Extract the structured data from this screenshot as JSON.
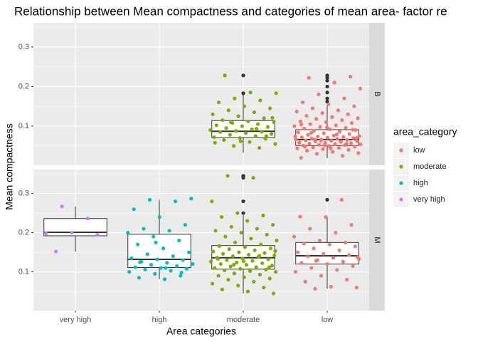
{
  "chart_data": {
    "type": "boxplot",
    "title": "Relationship between Mean compactness and categories of mean area- factor re",
    "x_label": "Area categories",
    "y_label": "Mean compactness",
    "categories": [
      "very high",
      "high",
      "moderate",
      "low"
    ],
    "ylim": [
      0.001,
      0.361
    ],
    "yticks": [
      0.1,
      0.2,
      0.3
    ],
    "yminor": [
      0.05,
      0.15,
      0.25,
      0.35
    ],
    "grid": true,
    "legend": {
      "title": "area_category",
      "position": "right",
      "entries": [
        {
          "name": "low",
          "color": "#F8766D"
        },
        {
          "name": "moderate",
          "color": "#7CAE00"
        },
        {
          "name": "high",
          "color": "#00BFC4"
        },
        {
          "name": "very high",
          "color": "#C77CFF"
        }
      ]
    },
    "outlier_color": "#333333",
    "facets": [
      {
        "label": "B",
        "groups": [
          null,
          null,
          {
            "whisker_low": 0.033,
            "q1": 0.071,
            "median": 0.087,
            "q3": 0.114,
            "whisker_high": 0.186,
            "outliers": [
              0.228,
              0.183
            ],
            "points": [
              0.045,
              0.05,
              0.055,
              0.06,
              0.065,
              0.068,
              0.07,
              0.072,
              0.075,
              0.078,
              0.08,
              0.082,
              0.085,
              0.086,
              0.088,
              0.09,
              0.092,
              0.095,
              0.098,
              0.1,
              0.102,
              0.105,
              0.108,
              0.11,
              0.112,
              0.115,
              0.12,
              0.125,
              0.13,
              0.135,
              0.14,
              0.145,
              0.15,
              0.16,
              0.165,
              0.17,
              0.183,
              0.185,
              0.228,
              0.075,
              0.062,
              0.058,
              0.093,
              0.11,
              0.121
            ]
          },
          {
            "whisker_low": 0.019,
            "q1": 0.051,
            "median": 0.066,
            "q3": 0.091,
            "whisker_high": 0.156,
            "outliers": [
              0.162,
              0.17,
              0.185,
              0.2,
              0.215,
              0.222,
              0.228
            ],
            "points": [
              0.02,
              0.025,
              0.03,
              0.032,
              0.035,
              0.038,
              0.04,
              0.042,
              0.044,
              0.045,
              0.046,
              0.048,
              0.05,
              0.051,
              0.052,
              0.053,
              0.054,
              0.055,
              0.056,
              0.057,
              0.058,
              0.059,
              0.06,
              0.061,
              0.062,
              0.063,
              0.064,
              0.065,
              0.066,
              0.067,
              0.068,
              0.069,
              0.07,
              0.071,
              0.072,
              0.073,
              0.074,
              0.075,
              0.076,
              0.078,
              0.08,
              0.082,
              0.084,
              0.086,
              0.088,
              0.09,
              0.092,
              0.094,
              0.096,
              0.098,
              0.1,
              0.102,
              0.105,
              0.108,
              0.11,
              0.112,
              0.115,
              0.118,
              0.12,
              0.123,
              0.126,
              0.13,
              0.133,
              0.137,
              0.14,
              0.145,
              0.15,
              0.155,
              0.16,
              0.17,
              0.18,
              0.195,
              0.21,
              0.222,
              0.225,
              0.052,
              0.058,
              0.061,
              0.066,
              0.07,
              0.044,
              0.048,
              0.056,
              0.063,
              0.074,
              0.079,
              0.083,
              0.091,
              0.097,
              0.104
            ]
          }
        ]
      },
      {
        "label": "M",
        "groups": [
          {
            "whisker_low": 0.152,
            "q1": 0.192,
            "median": 0.201,
            "q3": 0.236,
            "whisker_high": 0.267,
            "outliers": [],
            "points": [
              0.152,
              0.195,
              0.2,
              0.198,
              0.236,
              0.267
            ]
          },
          {
            "whisker_low": 0.081,
            "q1": 0.111,
            "median": 0.132,
            "q3": 0.196,
            "whisker_high": 0.284,
            "outliers": [],
            "points": [
              0.081,
              0.085,
              0.09,
              0.095,
              0.1,
              0.103,
              0.106,
              0.108,
              0.11,
              0.112,
              0.115,
              0.118,
              0.12,
              0.123,
              0.126,
              0.13,
              0.132,
              0.135,
              0.14,
              0.145,
              0.15,
              0.16,
              0.17,
              0.18,
              0.19,
              0.2,
              0.205,
              0.21,
              0.22,
              0.24,
              0.26,
              0.28,
              0.284,
              0.287,
              0.11,
              0.125,
              0.098,
              0.175
            ]
          },
          {
            "whisker_low": 0.045,
            "q1": 0.107,
            "median": 0.136,
            "q3": 0.167,
            "whisker_high": 0.244,
            "outliers": [
              0.25,
              0.28,
              0.34,
              0.345
            ],
            "points": [
              0.045,
              0.05,
              0.055,
              0.06,
              0.065,
              0.07,
              0.075,
              0.08,
              0.083,
              0.086,
              0.09,
              0.093,
              0.096,
              0.1,
              0.102,
              0.104,
              0.106,
              0.108,
              0.11,
              0.112,
              0.114,
              0.116,
              0.118,
              0.12,
              0.122,
              0.124,
              0.126,
              0.128,
              0.13,
              0.132,
              0.134,
              0.136,
              0.138,
              0.14,
              0.142,
              0.144,
              0.146,
              0.148,
              0.15,
              0.152,
              0.155,
              0.158,
              0.16,
              0.163,
              0.166,
              0.17,
              0.175,
              0.18,
              0.185,
              0.19,
              0.195,
              0.2,
              0.205,
              0.21,
              0.215,
              0.22,
              0.23,
              0.24,
              0.244,
              0.25,
              0.28,
              0.34,
              0.345,
              0.112,
              0.127,
              0.133,
              0.141,
              0.118,
              0.153,
              0.105
            ]
          },
          {
            "whisker_low": 0.057,
            "q1": 0.12,
            "median": 0.141,
            "q3": 0.175,
            "whisker_high": 0.241,
            "outliers": [
              0.284
            ],
            "points": [
              0.057,
              0.06,
              0.062,
              0.075,
              0.08,
              0.09,
              0.1,
              0.105,
              0.11,
              0.115,
              0.12,
              0.123,
              0.126,
              0.13,
              0.133,
              0.136,
              0.14,
              0.143,
              0.146,
              0.15,
              0.155,
              0.16,
              0.165,
              0.17,
              0.172,
              0.175,
              0.18,
              0.19,
              0.2,
              0.21,
              0.22,
              0.24,
              0.241,
              0.284,
              0.128,
              0.138
            ]
          }
        ]
      }
    ]
  }
}
